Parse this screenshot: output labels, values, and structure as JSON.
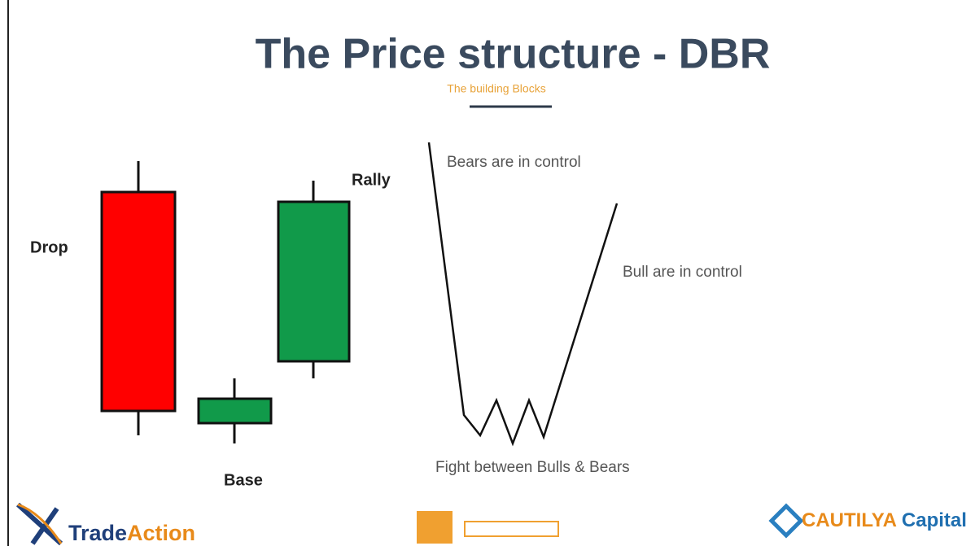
{
  "header": {
    "title": "The Price structure - DBR",
    "subtitle": "The building Blocks"
  },
  "candles": {
    "drop": "Drop",
    "base": "Base",
    "rally": "Rally"
  },
  "path_labels": {
    "bears": "Bears are in control",
    "bulls": "Bull are in control",
    "fight": "Fight between Bulls & Bears"
  },
  "logos": {
    "left": {
      "part1": "Trade",
      "part2": "Action"
    },
    "right": {
      "part1": "CAUTILYA",
      "part2": "Capital"
    }
  }
}
